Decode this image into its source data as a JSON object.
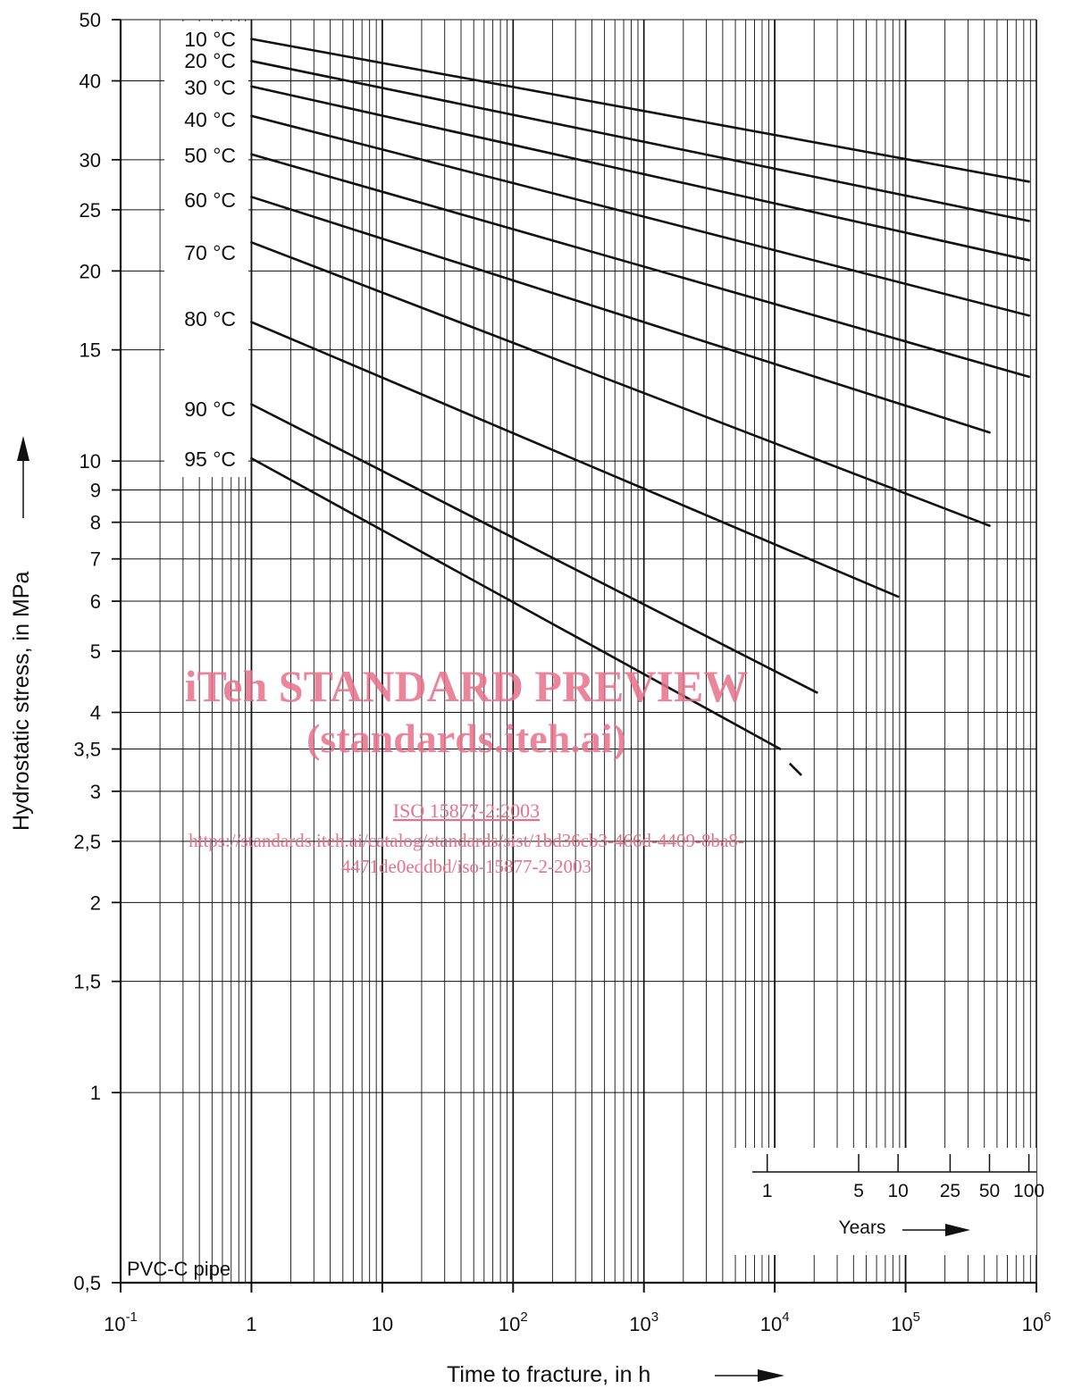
{
  "chart_data": {
    "type": "line",
    "xlabel": "Time to fracture, in h",
    "ylabel": "Hydrostatic stress, in MPa",
    "xscale": "log",
    "yscale": "log",
    "xlim": [
      0.1,
      1000000
    ],
    "ylim": [
      0.5,
      50
    ],
    "grid": true,
    "x_tick_labels": [
      {
        "value": 0.1,
        "base": "10",
        "exp": "-1"
      },
      {
        "value": 1,
        "base": "1",
        "exp": ""
      },
      {
        "value": 10,
        "base": "10",
        "exp": ""
      },
      {
        "value": 100,
        "base": "10",
        "exp": "2"
      },
      {
        "value": 1000,
        "base": "10",
        "exp": "3"
      },
      {
        "value": 10000,
        "base": "10",
        "exp": "4"
      },
      {
        "value": 100000,
        "base": "10",
        "exp": "5"
      },
      {
        "value": 1000000,
        "base": "10",
        "exp": "6"
      }
    ],
    "y_tick_labels": [
      {
        "value": 50,
        "label": "50"
      },
      {
        "value": 40,
        "label": "40"
      },
      {
        "value": 30,
        "label": "30"
      },
      {
        "value": 25,
        "label": "25"
      },
      {
        "value": 20,
        "label": "20"
      },
      {
        "value": 15,
        "label": "15"
      },
      {
        "value": 10,
        "label": "10"
      },
      {
        "value": 9,
        "label": "9"
      },
      {
        "value": 8,
        "label": "8"
      },
      {
        "value": 7,
        "label": "7"
      },
      {
        "value": 6,
        "label": "6"
      },
      {
        "value": 5,
        "label": "5"
      },
      {
        "value": 4,
        "label": "4"
      },
      {
        "value": 3.5,
        "label": "3,5"
      },
      {
        "value": 3,
        "label": "3"
      },
      {
        "value": 2.5,
        "label": "2,5"
      },
      {
        "value": 2,
        "label": "2"
      },
      {
        "value": 1.5,
        "label": "1,5"
      },
      {
        "value": 1,
        "label": "1"
      },
      {
        "value": 0.5,
        "label": "0,5"
      }
    ],
    "series": [
      {
        "name": "10 °C",
        "x": [
          1,
          876000
        ],
        "y": [
          46.6,
          27.7
        ]
      },
      {
        "name": "20 °C",
        "x": [
          1,
          876000
        ],
        "y": [
          43.0,
          24.0
        ]
      },
      {
        "name": "30 °C",
        "x": [
          1,
          876000
        ],
        "y": [
          39.2,
          20.8
        ]
      },
      {
        "name": "40 °C",
        "x": [
          1,
          876000
        ],
        "y": [
          35.2,
          17.0
        ]
      },
      {
        "name": "50 °C",
        "x": [
          1,
          876000
        ],
        "y": [
          30.6,
          13.6
        ]
      },
      {
        "name": "60 °C",
        "x": [
          1,
          438000
        ],
        "y": [
          26.2,
          11.1
        ]
      },
      {
        "name": "70 °C",
        "x": [
          1,
          438000
        ],
        "y": [
          22.2,
          7.9
        ]
      },
      {
        "name": "80 °C",
        "x": [
          1,
          87600
        ],
        "y": [
          16.6,
          6.1
        ]
      },
      {
        "name": "90 °C",
        "x": [
          1,
          21000
        ],
        "y": [
          12.3,
          4.3
        ]
      },
      {
        "name": "95 °C",
        "x": [
          1,
          11000
        ],
        "y": [
          10.1,
          3.5
        ]
      }
    ],
    "extrapolation": {
      "x": [
        13000,
        16000
      ],
      "y": [
        3.32,
        3.18
      ]
    },
    "years_axis": {
      "title": "Years",
      "ticks": [
        {
          "label": "1",
          "years": 1
        },
        {
          "label": "5",
          "years": 5
        },
        {
          "label": "10",
          "years": 10
        },
        {
          "label": "25",
          "years": 25
        },
        {
          "label": "50",
          "years": 50
        },
        {
          "label": "100",
          "years": 100
        }
      ]
    },
    "annotation": "PVC-C pipe"
  },
  "watermark": {
    "line1": "iTeh STANDARD PREVIEW",
    "line2": "(standards.iteh.ai)",
    "line3": "ISO 15877-2:2003",
    "line4": "https://standards.iteh.ai/catalog/standards/sist/1bd36cb3-466d-4409-8ba8-",
    "line5": "4471de0eddbd/iso-15877-2-2003"
  }
}
